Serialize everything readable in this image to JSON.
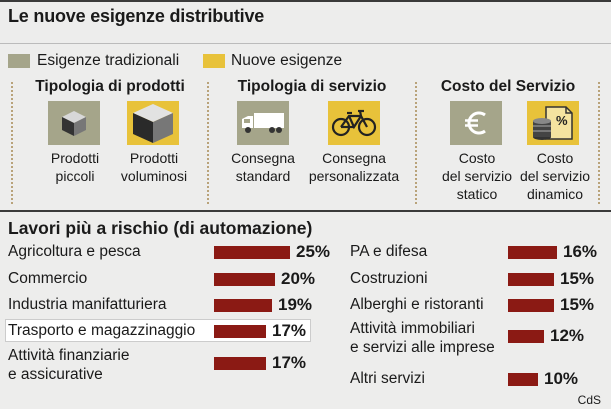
{
  "title": "Le nuove esigenze distributive",
  "legend": [
    {
      "label": "Esigenze tradizionali",
      "color": "#a5a58a"
    },
    {
      "label": "Nuove esigenze",
      "color": "#e8c23a"
    }
  ],
  "groups": [
    {
      "title": "Tipologia di prodotti",
      "items": [
        {
          "line1": "Prodotti",
          "line2": "piccoli",
          "line3": "",
          "icon": "small-cube-icon",
          "kind": "trad"
        },
        {
          "line1": "Prodotti",
          "line2": "voluminosi",
          "line3": "",
          "icon": "large-cube-icon",
          "kind": "nuov"
        }
      ]
    },
    {
      "title": "Tipologia di servizio",
      "items": [
        {
          "line1": "Consegna",
          "line2": "standard",
          "line3": "",
          "icon": "truck-icon",
          "kind": "trad"
        },
        {
          "line1": "Consegna",
          "line2": "personalizzata",
          "line3": "",
          "icon": "bicycle-icon",
          "kind": "nuov"
        }
      ]
    },
    {
      "title": "Costo del Servizio",
      "items": [
        {
          "line1": "Costo",
          "line2": "del servizio",
          "line3": "statico",
          "icon": "euro-icon",
          "kind": "trad"
        },
        {
          "line1": "Costo",
          "line2": "del servizio",
          "line3": "dinamico",
          "icon": "coins-percent-icon",
          "kind": "nuov"
        }
      ]
    }
  ],
  "section_title": "Lavori più a rischio (di automazione)",
  "source": "CdS",
  "colors": {
    "bar": "#8b1a14",
    "trad": "#a5a58a",
    "nuov": "#e8c23a"
  },
  "chart_data": {
    "type": "bar",
    "title": "Lavori più a rischio (di automazione)",
    "unit": "%",
    "highlighted": "Trasporto e magazzinaggio",
    "left": [
      {
        "label": "Agricoltura e pesca",
        "value": 25,
        "display": "25%"
      },
      {
        "label": "Commercio",
        "value": 20,
        "display": "20%"
      },
      {
        "label": "Industria manifatturiera",
        "value": 19,
        "display": "19%"
      },
      {
        "label": "Trasporto e magazzinaggio",
        "value": 17,
        "display": "17%"
      },
      {
        "label": "Attività finanziarie e assicurative",
        "value": 17,
        "display": "17%"
      }
    ],
    "right": [
      {
        "label": "PA e difesa",
        "value": 16,
        "display": "16%"
      },
      {
        "label": "Costruzioni",
        "value": 15,
        "display": "15%"
      },
      {
        "label": "Alberghi e ristoranti",
        "value": 15,
        "display": "15%"
      },
      {
        "label": "Attività immobiliari e servizi alle imprese",
        "value": 12,
        "display": "12%"
      },
      {
        "label": "Altri servizi",
        "value": 10,
        "display": "10%"
      }
    ]
  }
}
